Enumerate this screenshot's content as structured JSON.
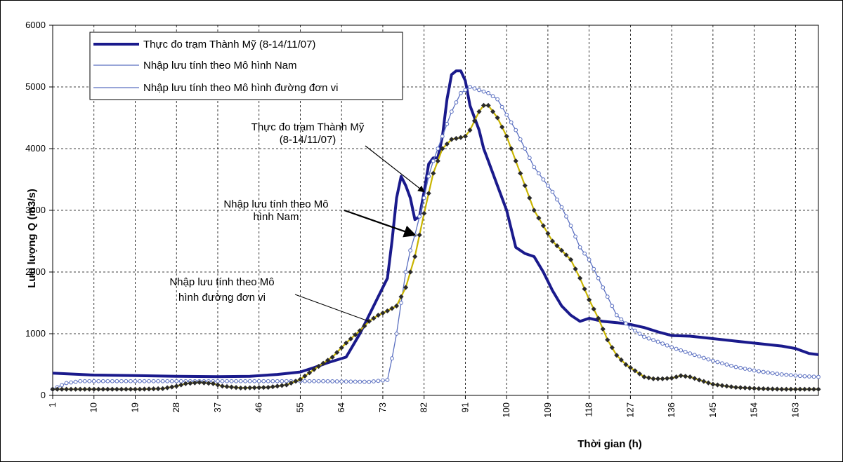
{
  "chart_data": {
    "type": "line",
    "ylabel": "Lưu lượng Q (m3/s)",
    "xlabel": "Thời gian (h)",
    "ylim": [
      0,
      6000
    ],
    "yticks": [
      0,
      1000,
      2000,
      3000,
      4000,
      5000,
      6000
    ],
    "xlim": [
      1,
      168
    ],
    "xticks": [
      1,
      10,
      19,
      28,
      37,
      46,
      55,
      64,
      73,
      82,
      91,
      100,
      109,
      118,
      127,
      136,
      145,
      154,
      163
    ],
    "grid": true,
    "legend_position": "top-left",
    "series": [
      {
        "name": "Thực đo trạm Thành Mỹ (8-14/11/07)",
        "color": "#1a1a8c",
        "style": "thick",
        "points": [
          [
            1,
            360
          ],
          [
            10,
            330
          ],
          [
            19,
            320
          ],
          [
            28,
            310
          ],
          [
            37,
            305
          ],
          [
            44,
            310
          ],
          [
            50,
            340
          ],
          [
            55,
            380
          ],
          [
            58,
            450
          ],
          [
            61,
            530
          ],
          [
            65,
            620
          ],
          [
            68,
            1000
          ],
          [
            70,
            1300
          ],
          [
            72,
            1600
          ],
          [
            74,
            1900
          ],
          [
            75,
            2500
          ],
          [
            76,
            3200
          ],
          [
            77,
            3550
          ],
          [
            78,
            3400
          ],
          [
            79,
            3200
          ],
          [
            80,
            2850
          ],
          [
            81,
            2900
          ],
          [
            82,
            3300
          ],
          [
            83,
            3750
          ],
          [
            84,
            3850
          ],
          [
            85,
            3850
          ],
          [
            86,
            4200
          ],
          [
            87,
            4800
          ],
          [
            88,
            5200
          ],
          [
            89,
            5260
          ],
          [
            90,
            5260
          ],
          [
            91,
            5100
          ],
          [
            92,
            4700
          ],
          [
            93,
            4500
          ],
          [
            94,
            4300
          ],
          [
            95,
            4000
          ],
          [
            96,
            3800
          ],
          [
            98,
            3400
          ],
          [
            100,
            3000
          ],
          [
            102,
            2400
          ],
          [
            104,
            2300
          ],
          [
            106,
            2250
          ],
          [
            108,
            2000
          ],
          [
            110,
            1700
          ],
          [
            112,
            1450
          ],
          [
            114,
            1300
          ],
          [
            116,
            1200
          ],
          [
            118,
            1250
          ],
          [
            121,
            1200
          ],
          [
            124,
            1180
          ],
          [
            127,
            1150
          ],
          [
            130,
            1100
          ],
          [
            133,
            1030
          ],
          [
            136,
            970
          ],
          [
            140,
            960
          ],
          [
            145,
            920
          ],
          [
            150,
            880
          ],
          [
            155,
            840
          ],
          [
            160,
            800
          ],
          [
            163,
            760
          ],
          [
            166,
            680
          ],
          [
            168,
            660
          ]
        ]
      },
      {
        "name": "Nhập lưu tính theo Mô hình Nam",
        "color": "#5a6fc0",
        "style": "thin-hollow-markers",
        "points": [
          [
            1,
            100
          ],
          [
            4,
            200
          ],
          [
            7,
            230
          ],
          [
            20,
            230
          ],
          [
            40,
            230
          ],
          [
            55,
            230
          ],
          [
            60,
            230
          ],
          [
            70,
            220
          ],
          [
            74,
            250
          ],
          [
            75,
            600
          ],
          [
            76,
            1000
          ],
          [
            77,
            1500
          ],
          [
            78,
            2000
          ],
          [
            79,
            2350
          ],
          [
            80,
            2600
          ],
          [
            81,
            2900
          ],
          [
            82,
            3200
          ],
          [
            83,
            3550
          ],
          [
            84,
            3800
          ],
          [
            86,
            4200
          ],
          [
            88,
            4600
          ],
          [
            90,
            4900
          ],
          [
            92,
            5000
          ],
          [
            94,
            4950
          ],
          [
            96,
            4900
          ],
          [
            98,
            4800
          ],
          [
            100,
            4550
          ],
          [
            102,
            4300
          ],
          [
            104,
            4000
          ],
          [
            106,
            3700
          ],
          [
            108,
            3500
          ],
          [
            110,
            3300
          ],
          [
            112,
            3050
          ],
          [
            114,
            2750
          ],
          [
            116,
            2400
          ],
          [
            118,
            2200
          ],
          [
            120,
            1900
          ],
          [
            122,
            1600
          ],
          [
            124,
            1300
          ],
          [
            127,
            1100
          ],
          [
            130,
            950
          ],
          [
            133,
            870
          ],
          [
            136,
            780
          ],
          [
            140,
            680
          ],
          [
            145,
            560
          ],
          [
            150,
            460
          ],
          [
            155,
            390
          ],
          [
            160,
            340
          ],
          [
            165,
            310
          ],
          [
            168,
            300
          ]
        ]
      },
      {
        "name": "Nhập lưu tính theo Mô hình đường đơn vi",
        "color": "#2a2a2a",
        "style": "diamond-markers",
        "points": [
          [
            1,
            100
          ],
          [
            10,
            100
          ],
          [
            20,
            100
          ],
          [
            25,
            110
          ],
          [
            28,
            150
          ],
          [
            30,
            190
          ],
          [
            33,
            210
          ],
          [
            36,
            190
          ],
          [
            38,
            150
          ],
          [
            42,
            120
          ],
          [
            48,
            130
          ],
          [
            52,
            170
          ],
          [
            55,
            260
          ],
          [
            58,
            420
          ],
          [
            62,
            620
          ],
          [
            65,
            850
          ],
          [
            68,
            1050
          ],
          [
            70,
            1200
          ],
          [
            72,
            1300
          ],
          [
            74,
            1370
          ],
          [
            76,
            1450
          ],
          [
            78,
            1750
          ],
          [
            80,
            2250
          ],
          [
            82,
            2950
          ],
          [
            84,
            3600
          ],
          [
            86,
            4000
          ],
          [
            88,
            4150
          ],
          [
            90,
            4180
          ],
          [
            91,
            4200
          ],
          [
            92,
            4300
          ],
          [
            94,
            4600
          ],
          [
            95,
            4700
          ],
          [
            96,
            4700
          ],
          [
            98,
            4500
          ],
          [
            100,
            4200
          ],
          [
            102,
            3800
          ],
          [
            104,
            3400
          ],
          [
            106,
            3000
          ],
          [
            108,
            2750
          ],
          [
            110,
            2500
          ],
          [
            112,
            2350
          ],
          [
            114,
            2200
          ],
          [
            116,
            1900
          ],
          [
            118,
            1550
          ],
          [
            120,
            1250
          ],
          [
            122,
            900
          ],
          [
            124,
            650
          ],
          [
            126,
            500
          ],
          [
            128,
            400
          ],
          [
            130,
            300
          ],
          [
            132,
            270
          ],
          [
            134,
            270
          ],
          [
            136,
            280
          ],
          [
            138,
            320
          ],
          [
            140,
            300
          ],
          [
            142,
            250
          ],
          [
            145,
            180
          ],
          [
            150,
            130
          ],
          [
            155,
            110
          ],
          [
            160,
            100
          ],
          [
            168,
            100
          ]
        ]
      }
    ],
    "annotations": [
      {
        "lines": [
          "Thực đo trạm Thành Mỹ",
          "(8-14/11/07)"
        ],
        "target": [
          82,
          3300
        ],
        "series": 0
      },
      {
        "lines": [
          "Nhập lưu tính theo Mô",
          "hình Nam"
        ],
        "target": [
          80,
          2600
        ],
        "series": 1
      },
      {
        "lines": [
          "Nhập lưu tính theo Mô",
          "hình đường đơn vi"
        ],
        "target": [
          70,
          1200
        ],
        "series": 2
      }
    ]
  }
}
